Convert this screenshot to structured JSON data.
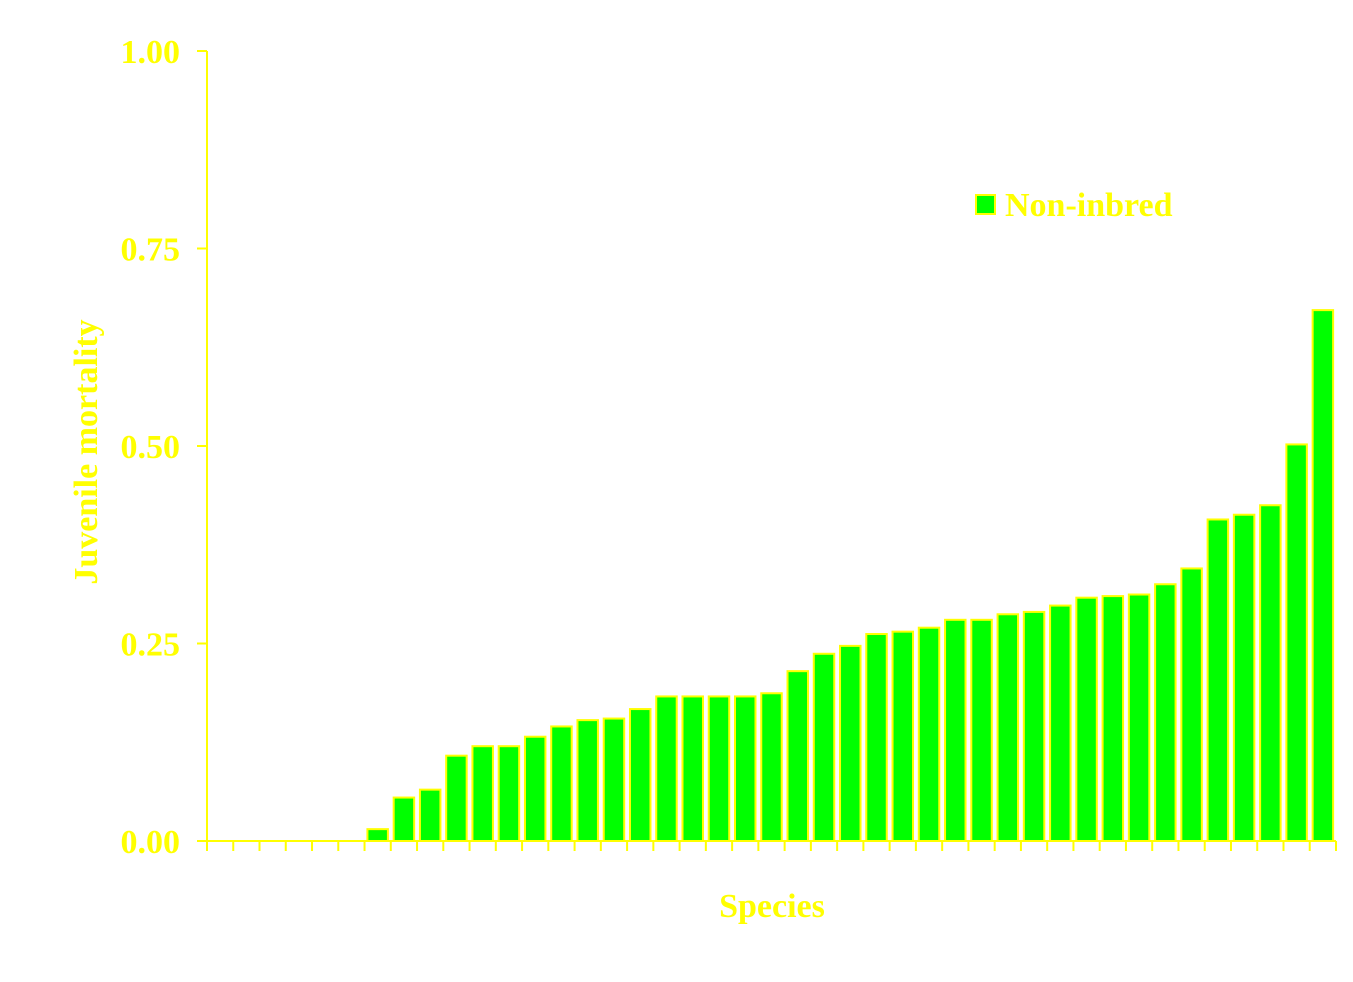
{
  "chart_data": {
    "type": "bar",
    "xlabel": "Species",
    "ylabel": "Juvenile mortality",
    "ylim": [
      0,
      1
    ],
    "yticks": [
      "0.00",
      "0.25",
      "0.50",
      "0.75",
      "1.00"
    ],
    "grid": false,
    "legend_position": "top-right",
    "series": [
      {
        "name": "Non-inbred",
        "values": [
          0,
          0,
          0,
          0,
          0,
          0,
          0.015,
          0.055,
          0.065,
          0.108,
          0.12,
          0.12,
          0.132,
          0.145,
          0.153,
          0.155,
          0.167,
          0.183,
          0.183,
          0.183,
          0.183,
          0.187,
          0.215,
          0.237,
          0.247,
          0.262,
          0.265,
          0.27,
          0.28,
          0.28,
          0.287,
          0.29,
          0.298,
          0.308,
          0.31,
          0.312,
          0.325,
          0.345,
          0.407,
          0.413,
          0.425,
          0.502,
          0.672
        ]
      }
    ]
  },
  "colors": {
    "text": "#ffff00",
    "axis": "#ffff00",
    "bar_fill": "#00ff00",
    "bar_stroke": "#ffff00",
    "background": "#ffffff"
  }
}
